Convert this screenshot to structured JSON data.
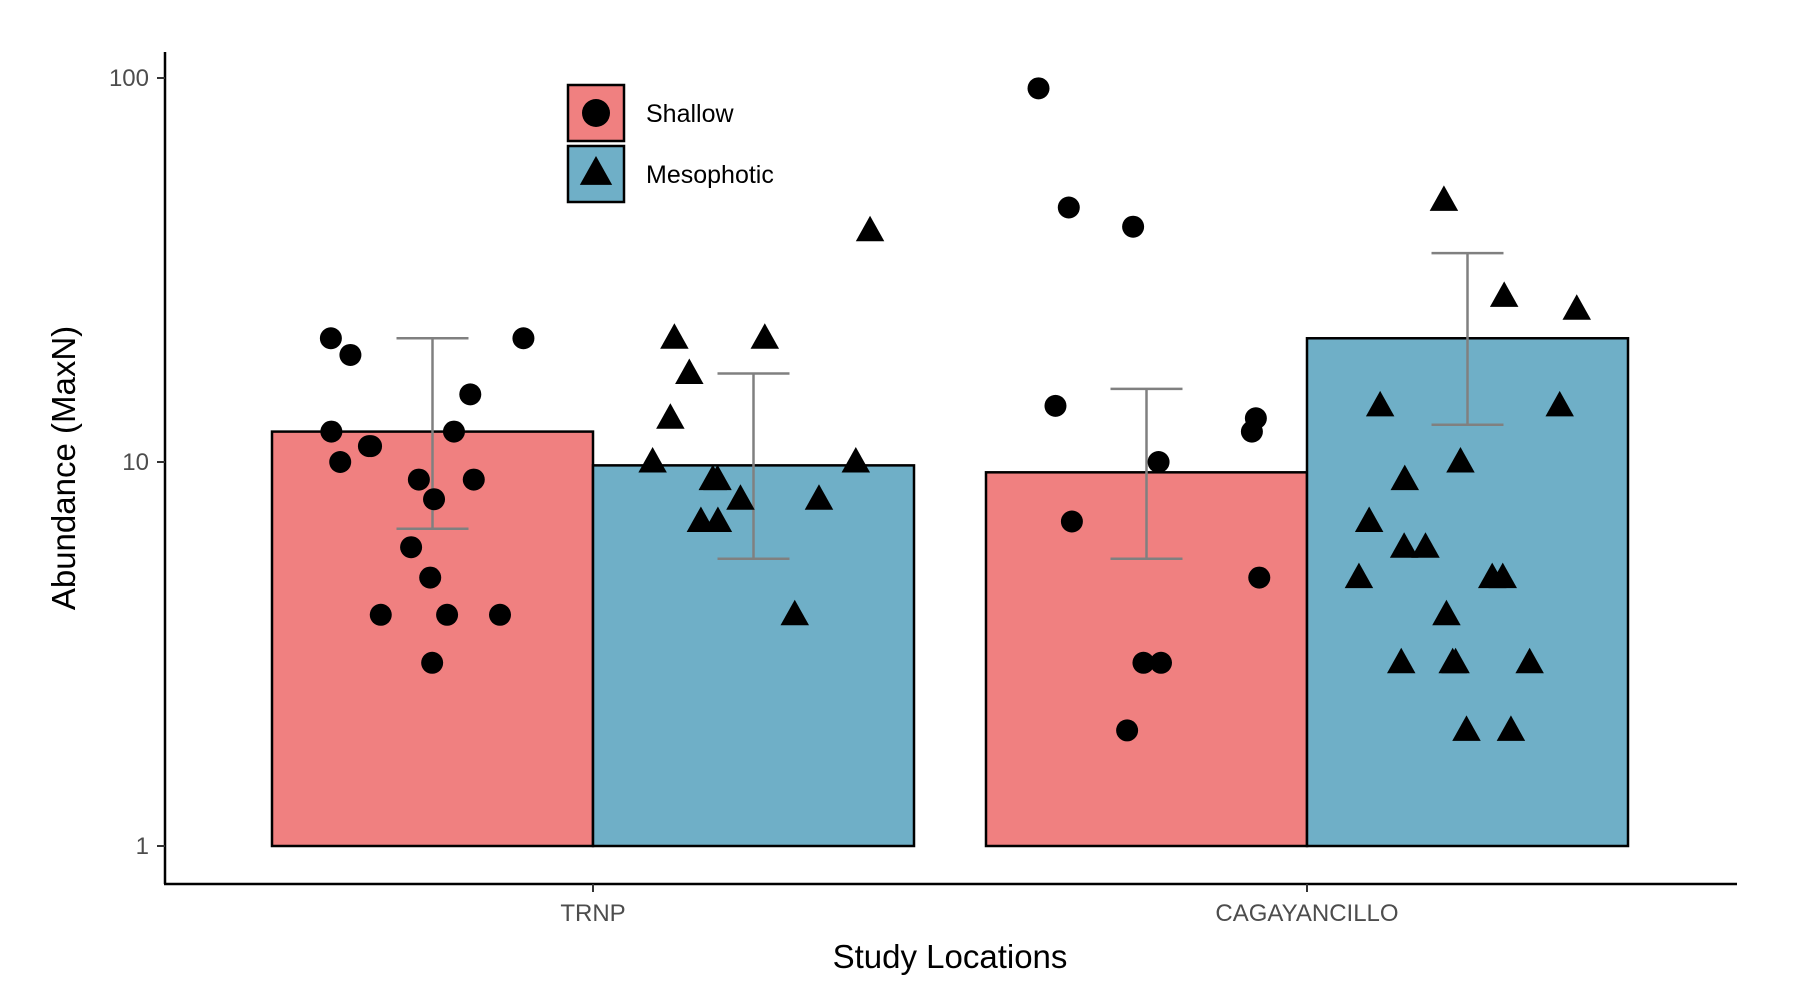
{
  "chart_data": {
    "type": "bar",
    "yscale": "log",
    "ylim": [
      0.8,
      120
    ],
    "yticks": [
      1,
      10,
      100
    ],
    "ytick_labels": [
      "1",
      "10",
      "100"
    ],
    "xlabel": "Study Locations",
    "ylabel": "Abundance (MaxN)",
    "categories": [
      "TRNP",
      "CAGAYANCILLO"
    ],
    "legend_position": "top-left",
    "grid": false,
    "series": [
      {
        "name": "Shallow",
        "marker": "circle",
        "color": "#F08080",
        "values": [
          12,
          9.4
        ],
        "error": [
          [
            6.7,
            21
          ],
          [
            5.6,
            15.5
          ]
        ],
        "points": [
          [
            5,
            4,
            10,
            11,
            9,
            8,
            12,
            21,
            12,
            6,
            4,
            4,
            15,
            21,
            3,
            11,
            9,
            19
          ],
          [
            3,
            3,
            46,
            94,
            12,
            5,
            14,
            41,
            13,
            7,
            2,
            10
          ]
        ]
      },
      {
        "name": "Mesophotic",
        "marker": "triangle",
        "color": "#6FAFC7",
        "values": [
          9.8,
          21
        ],
        "error": [
          [
            5.6,
            17
          ],
          [
            12.5,
            35
          ]
        ],
        "points": [
          [
            4,
            7,
            21,
            40,
            8,
            17,
            21,
            9,
            13,
            8,
            7,
            9,
            10,
            10
          ],
          [
            9,
            14,
            10,
            6,
            5,
            48,
            3,
            27,
            14,
            3,
            3,
            7,
            5,
            4,
            2,
            5,
            25,
            6,
            3,
            2
          ]
        ]
      }
    ]
  }
}
